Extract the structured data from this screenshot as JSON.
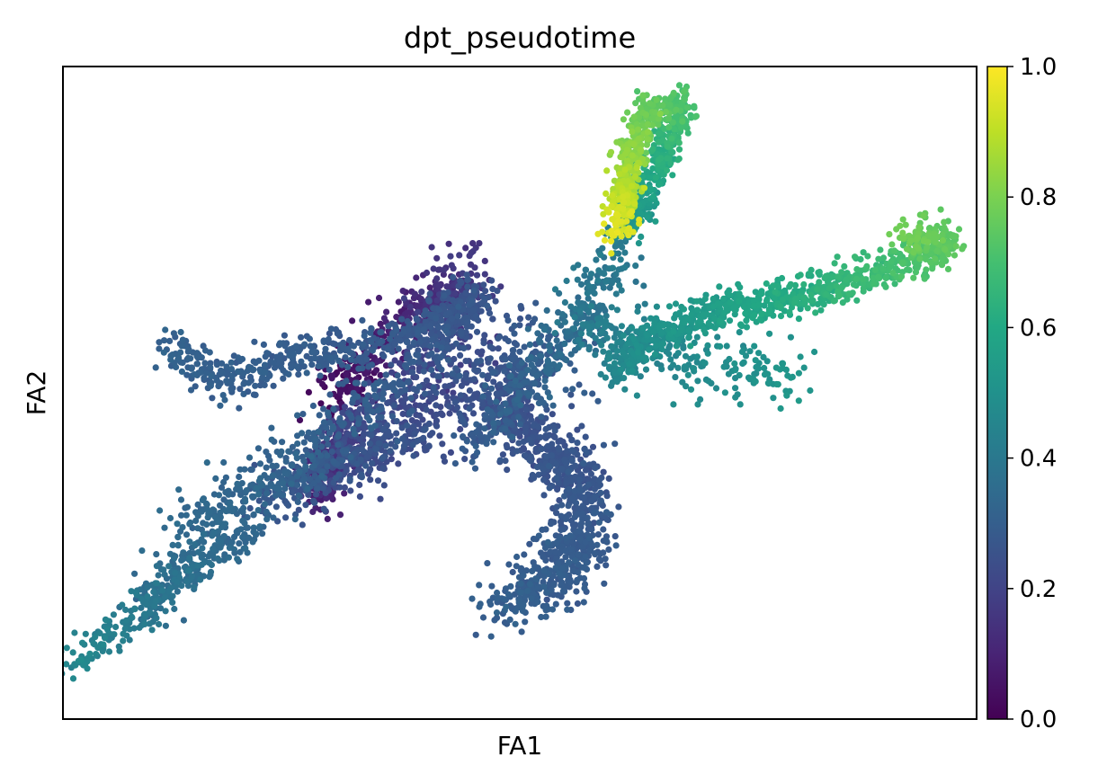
{
  "chart_data": {
    "type": "scatter",
    "title": "dpt_pseudotime",
    "xlabel": "FA1",
    "ylabel": "FA2",
    "grid": false,
    "legend": "none",
    "colormap": "viridis",
    "colorbar": {
      "label": "",
      "range": [
        0.0,
        1.0
      ],
      "ticks": [
        {
          "value": 0.0,
          "label": "0.0"
        },
        {
          "value": 0.2,
          "label": "0.2"
        },
        {
          "value": 0.4,
          "label": "0.4"
        },
        {
          "value": 0.6,
          "label": "0.6"
        },
        {
          "value": 0.8,
          "label": "0.8"
        },
        {
          "value": 1.0,
          "label": "1.0"
        }
      ]
    },
    "xlim": [
      0,
      100
    ],
    "ylim": [
      0,
      100
    ],
    "branches": [
      {
        "path": [
          [
            35.5,
            58.5
          ],
          [
            29,
            63
          ],
          [
            22,
            66.5
          ]
        ],
        "value": [
          0.22,
          0.27
        ],
        "spread": 2.2,
        "n": 180
      },
      {
        "path": [
          [
            28,
            66
          ],
          [
            29,
            60
          ],
          [
            32,
            53
          ]
        ],
        "value": [
          0.08,
          0.2
        ],
        "spread": 1.8,
        "n": 220
      },
      {
        "path": [
          [
            29.5,
            52
          ],
          [
            33,
            46
          ],
          [
            37,
            40
          ],
          [
            44.5,
            31
          ]
        ],
        "value": [
          0.02,
          0.16
        ],
        "spread": 2.4,
        "n": 320
      },
      {
        "path": [
          [
            45,
            32
          ],
          [
            43,
            37
          ],
          [
            40.5,
            44
          ],
          [
            36,
            53
          ],
          [
            30.5,
            60
          ]
        ],
        "value": [
          0.16,
          0.24
        ],
        "spread": 3.2,
        "n": 260
      },
      {
        "path": [
          [
            46,
            35
          ],
          [
            40,
            40
          ],
          [
            32,
            43
          ],
          [
            25,
            45
          ],
          [
            17.5,
            48
          ],
          [
            11.5,
            43.5
          ]
        ],
        "value": [
          0.26,
          0.31
        ],
        "spread": 1.7,
        "n": 520
      },
      {
        "path": [
          [
            45.5,
            36
          ],
          [
            38,
            47
          ],
          [
            30,
            55
          ],
          [
            22,
            64
          ],
          [
            15,
            70
          ],
          [
            9.5,
            83
          ]
        ],
        "value": [
          0.26,
          0.36
        ],
        "spread": 2.6,
        "n": 560
      },
      {
        "path": [
          [
            21,
            71
          ],
          [
            14,
            77
          ],
          [
            10,
            82
          ],
          [
            5,
            87
          ],
          [
            1,
            92
          ]
        ],
        "value": [
          0.32,
          0.46
        ],
        "spread": 1.4,
        "n": 260
      },
      {
        "path": [
          [
            40,
            56
          ],
          [
            32,
            60
          ],
          [
            25,
            63
          ]
        ],
        "value": [
          0.24,
          0.3
        ],
        "spread": 1.5,
        "n": 150
      },
      {
        "path": [
          [
            47,
            50
          ],
          [
            51,
            56
          ],
          [
            55,
            61
          ],
          [
            57.5,
            68
          ],
          [
            56,
            75
          ],
          [
            52,
            80
          ],
          [
            47.5,
            82
          ]
        ],
        "value": [
          0.24,
          0.3
        ],
        "spread": 2.8,
        "n": 900
      },
      {
        "path": [
          [
            45,
            59
          ],
          [
            49,
            51
          ],
          [
            53,
            45
          ],
          [
            56,
            40
          ],
          [
            58.5,
            35
          ],
          [
            60,
            30
          ],
          [
            62,
            25
          ]
        ],
        "value": [
          0.28,
          0.42
        ],
        "spread": 2.2,
        "n": 300
      },
      {
        "path": [
          [
            62,
            25
          ],
          [
            64.5,
            17
          ],
          [
            66.5,
            10
          ],
          [
            68,
            6
          ],
          [
            64.5,
            6
          ],
          [
            62.5,
            12
          ],
          [
            61.5,
            20
          ],
          [
            60.5,
            26
          ]
        ],
        "value": [
          0.5,
          0.96
        ],
        "spread": 1.4,
        "n": 700
      },
      {
        "path": [
          [
            60,
            47
          ],
          [
            65,
            41
          ],
          [
            70,
            38
          ],
          [
            78,
            36
          ],
          [
            86,
            33
          ],
          [
            91.5,
            30.5
          ],
          [
            94.5,
            28.5
          ],
          [
            97,
            28
          ],
          [
            96.5,
            26.5
          ],
          [
            92,
            25.5
          ]
        ],
        "value": [
          0.45,
          0.78
        ],
        "spread": 1.5,
        "n": 900
      },
      {
        "path": [
          [
            56,
            36
          ],
          [
            61,
            41.5
          ],
          [
            67,
            44.5
          ],
          [
            72,
            46.5
          ],
          [
            80,
            48
          ]
        ],
        "value": [
          0.4,
          0.52
        ],
        "spread": 2.6,
        "n": 260
      },
      {
        "path": [
          [
            40,
            52
          ],
          [
            45,
            49
          ],
          [
            50,
            46
          ],
          [
            55,
            44
          ]
        ],
        "value": [
          0.22,
          0.3
        ],
        "spread": 4.0,
        "n": 300
      }
    ]
  }
}
